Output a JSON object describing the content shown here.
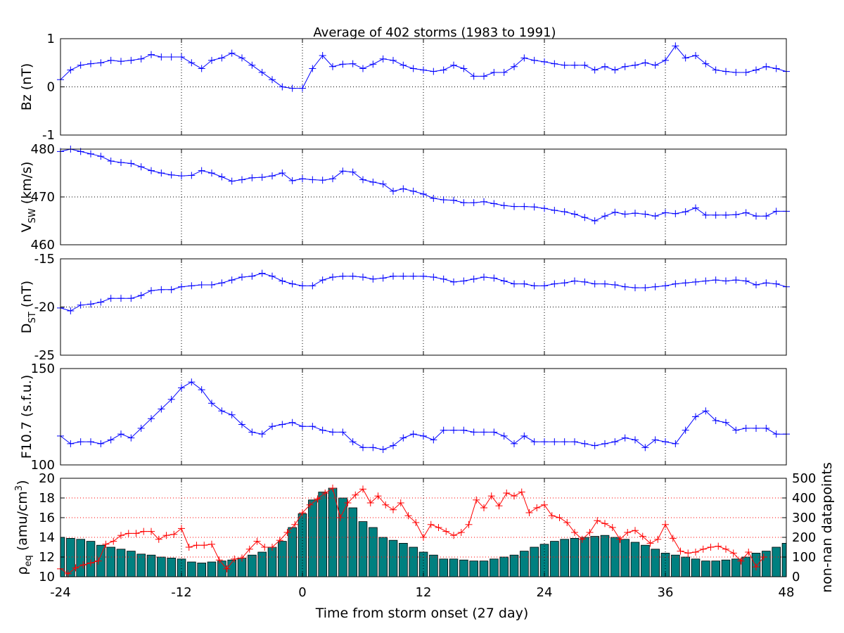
{
  "figure": {
    "title": "Average of 402 storms  (1983 to 1991)",
    "xlabel": "Time from storm onset (27 day)"
  },
  "colors": {
    "line": "#0000ff",
    "red": "#ff0000",
    "bar": "#008080",
    "bar_edge": "#000000"
  },
  "chart_data": [
    {
      "type": "line",
      "ylabel": "Bz (nT)",
      "xlim": [
        -24,
        48
      ],
      "ylim": [
        -1,
        1
      ],
      "yticks": [
        "-1",
        "0",
        "1"
      ],
      "ytick_values": [
        -1,
        0,
        1
      ],
      "xticks": [
        "-24",
        "-12",
        "0",
        "12",
        "24",
        "36",
        "48"
      ],
      "xtick_values": [
        -24,
        -12,
        0,
        12,
        24,
        36,
        48
      ],
      "grid": true,
      "series": [
        {
          "x_start": -24,
          "x_step": 1,
          "values": [
            0.15,
            0.35,
            0.45,
            0.48,
            0.5,
            0.55,
            0.53,
            0.55,
            0.58,
            0.67,
            0.62,
            0.62,
            0.62,
            0.5,
            0.38,
            0.55,
            0.6,
            0.7,
            0.6,
            0.45,
            0.3,
            0.15,
            0.0,
            -0.03,
            -0.03,
            0.38,
            0.65,
            0.42,
            0.47,
            0.48,
            0.38,
            0.47,
            0.58,
            0.55,
            0.45,
            0.38,
            0.35,
            0.32,
            0.35,
            0.45,
            0.38,
            0.22,
            0.22,
            0.3,
            0.3,
            0.42,
            0.6,
            0.55,
            0.52,
            0.48,
            0.45,
            0.45,
            0.45,
            0.35,
            0.42,
            0.35,
            0.42,
            0.45,
            0.5,
            0.45,
            0.55,
            0.85,
            0.6,
            0.65,
            0.48,
            0.35,
            0.32,
            0.3,
            0.3,
            0.35,
            0.42,
            0.38,
            0.32,
            0.2,
            0.25
          ]
        }
      ]
    },
    {
      "type": "line",
      "ylabel": "V_SW (km/s)",
      "xlim": [
        -24,
        48
      ],
      "ylim": [
        460,
        480
      ],
      "yticks": [
        "460",
        "470",
        "480"
      ],
      "ytick_values": [
        460,
        470,
        480
      ],
      "grid": true,
      "series": [
        {
          "x_start": -24,
          "x_step": 1,
          "values": [
            479.5,
            480.0,
            479.5,
            479.0,
            478.5,
            477.5,
            477.2,
            477.0,
            476.3,
            475.5,
            475.0,
            474.6,
            474.4,
            474.5,
            475.5,
            475.0,
            474.2,
            473.3,
            473.6,
            474.0,
            474.1,
            474.4,
            475.0,
            473.4,
            473.8,
            473.6,
            473.5,
            473.8,
            475.4,
            475.2,
            473.6,
            473.1,
            472.7,
            471.2,
            471.7,
            471.2,
            470.6,
            469.7,
            469.4,
            469.3,
            468.8,
            468.8,
            469.0,
            468.6,
            468.2,
            468.0,
            468.0,
            467.9,
            467.6,
            467.2,
            466.9,
            466.4,
            465.7,
            465.0,
            466.0,
            466.8,
            466.4,
            466.6,
            466.4,
            466.0,
            466.7,
            466.5,
            466.9,
            467.7,
            466.2,
            466.2,
            466.2,
            466.3,
            466.7,
            466.0,
            466.0,
            467.0,
            467.0,
            467.4,
            468.4,
            467.2,
            466.6,
            466.2,
            466.2
          ]
        }
      ]
    },
    {
      "type": "line",
      "ylabel": "D_ST (nT)",
      "xlim": [
        -24,
        48
      ],
      "ylim": [
        -25,
        -15
      ],
      "yticks": [
        "-25",
        "-20",
        "-15"
      ],
      "ytick_values": [
        -25,
        -20,
        -15
      ],
      "grid": true,
      "series": [
        {
          "x_start": -24,
          "x_step": 1,
          "values": [
            -20.1,
            -20.4,
            -19.8,
            -19.7,
            -19.5,
            -19.1,
            -19.1,
            -19.1,
            -18.8,
            -18.3,
            -18.2,
            -18.2,
            -17.9,
            -17.8,
            -17.7,
            -17.7,
            -17.5,
            -17.2,
            -16.9,
            -16.8,
            -16.5,
            -16.8,
            -17.3,
            -17.6,
            -17.8,
            -17.8,
            -17.2,
            -16.9,
            -16.8,
            -16.8,
            -16.9,
            -17.1,
            -17.0,
            -16.8,
            -16.8,
            -16.8,
            -16.8,
            -16.9,
            -17.1,
            -17.4,
            -17.3,
            -17.1,
            -16.9,
            -17.0,
            -17.3,
            -17.6,
            -17.6,
            -17.8,
            -17.8,
            -17.6,
            -17.5,
            -17.3,
            -17.4,
            -17.6,
            -17.6,
            -17.7,
            -17.9,
            -18.0,
            -18.0,
            -17.9,
            -17.8,
            -17.6,
            -17.5,
            -17.4,
            -17.3,
            -17.2,
            -17.3,
            -17.2,
            -17.3,
            -17.7,
            -17.5,
            -17.6,
            -17.9,
            -17.8,
            -17.6,
            -17.5,
            -17.8,
            -17.5,
            -17.4,
            -17.4
          ]
        }
      ]
    },
    {
      "type": "line",
      "ylabel": "F10.7 (s.f.u.)",
      "xlim": [
        -24,
        48
      ],
      "ylim": [
        100,
        150
      ],
      "yticks": [
        "100",
        "150"
      ],
      "ytick_values": [
        100,
        150
      ],
      "grid": true,
      "series": [
        {
          "x_start": -24,
          "x_step": 1,
          "values": [
            115,
            111,
            112,
            112,
            111,
            113,
            116,
            114,
            119,
            124,
            129,
            134,
            140,
            143,
            139,
            132,
            128,
            126,
            121,
            117,
            116,
            120,
            121,
            122,
            120,
            120,
            118,
            117,
            117,
            112,
            109,
            109,
            108,
            110,
            114,
            116,
            115,
            113,
            118,
            118,
            118,
            117,
            117,
            117,
            115,
            111,
            115,
            112,
            112,
            112,
            112,
            112,
            111,
            110,
            111,
            112,
            114,
            113,
            109,
            113,
            112,
            111,
            118,
            125,
            128,
            123,
            122,
            118,
            119,
            119,
            119,
            116,
            116,
            116,
            114,
            111,
            108
          ]
        }
      ]
    },
    {
      "type": "line+bar",
      "ylabel_left": "ρ_eq (amu/cm^3)",
      "ylabel_right": "non-nan datapoints",
      "xlim": [
        -24,
        48
      ],
      "ylim_left": [
        10,
        20
      ],
      "yticks_left": [
        "10",
        "12",
        "14",
        "16",
        "18",
        "20"
      ],
      "ytick_values_left": [
        10,
        12,
        14,
        16,
        18,
        20
      ],
      "ylim_right": [
        0,
        500
      ],
      "yticks_right": [
        "0",
        "100",
        "200",
        "300",
        "400",
        "500"
      ],
      "ytick_values_right": [
        0,
        100,
        200,
        300,
        400,
        500
      ],
      "xticks": [
        "-24",
        "-12",
        "0",
        "12",
        "24",
        "36",
        "48"
      ],
      "xtick_values": [
        -24,
        -12,
        0,
        12,
        24,
        36,
        48
      ],
      "grid": true,
      "series": [
        {
          "kind": "line",
          "axis": "left",
          "x_start": -24,
          "x_step": 1,
          "values": [
            10.8,
            10.3,
            10.9,
            11.2,
            11.4,
            11.6,
            13.3,
            13.6,
            14.2,
            14.4,
            14.4,
            14.6,
            14.6,
            13.8,
            14.2,
            14.3,
            14.9,
            13.0,
            13.2,
            13.2,
            13.3,
            11.7,
            10.8,
            11.8,
            11.9,
            12.8,
            13.6,
            13.0,
            13.0,
            13.7,
            14.5,
            15.3,
            16.5,
            17.3,
            17.9,
            18.5,
            19.0,
            16.0,
            17.5,
            18.3,
            18.9,
            17.5,
            18.2,
            17.3,
            16.8,
            17.5,
            16.2,
            15.5,
            14.0,
            15.3,
            15.0,
            14.6,
            14.2,
            14.5,
            15.3,
            17.8,
            17.0,
            18.2,
            17.2,
            18.5,
            18.2,
            18.6,
            16.5,
            17.0,
            17.3,
            16.2,
            16.0,
            15.5,
            14.5,
            13.8,
            14.5,
            15.7,
            15.4,
            15.0,
            13.8,
            14.5,
            14.7,
            14.1,
            13.4,
            13.8,
            15.3,
            13.9,
            12.6,
            12.4,
            12.5,
            12.8,
            13.0,
            13.1,
            12.8,
            12.4,
            11.6,
            12.5,
            11.0,
            12.0
          ]
        },
        {
          "kind": "bar",
          "axis": "right",
          "x_start": -24,
          "x_step": 1,
          "values": [
            200,
            195,
            190,
            180,
            160,
            150,
            140,
            130,
            115,
            110,
            100,
            95,
            90,
            75,
            70,
            75,
            80,
            85,
            95,
            110,
            125,
            150,
            180,
            250,
            320,
            390,
            430,
            450,
            400,
            350,
            280,
            250,
            200,
            185,
            170,
            150,
            125,
            110,
            90,
            90,
            85,
            80,
            80,
            90,
            100,
            110,
            130,
            150,
            165,
            180,
            190,
            195,
            200,
            205,
            210,
            200,
            190,
            175,
            160,
            140,
            120,
            110,
            100,
            90,
            80,
            80,
            85,
            90,
            100,
            120,
            130,
            150,
            170,
            180,
            190,
            195,
            200,
            205,
            210
          ]
        }
      ]
    }
  ]
}
